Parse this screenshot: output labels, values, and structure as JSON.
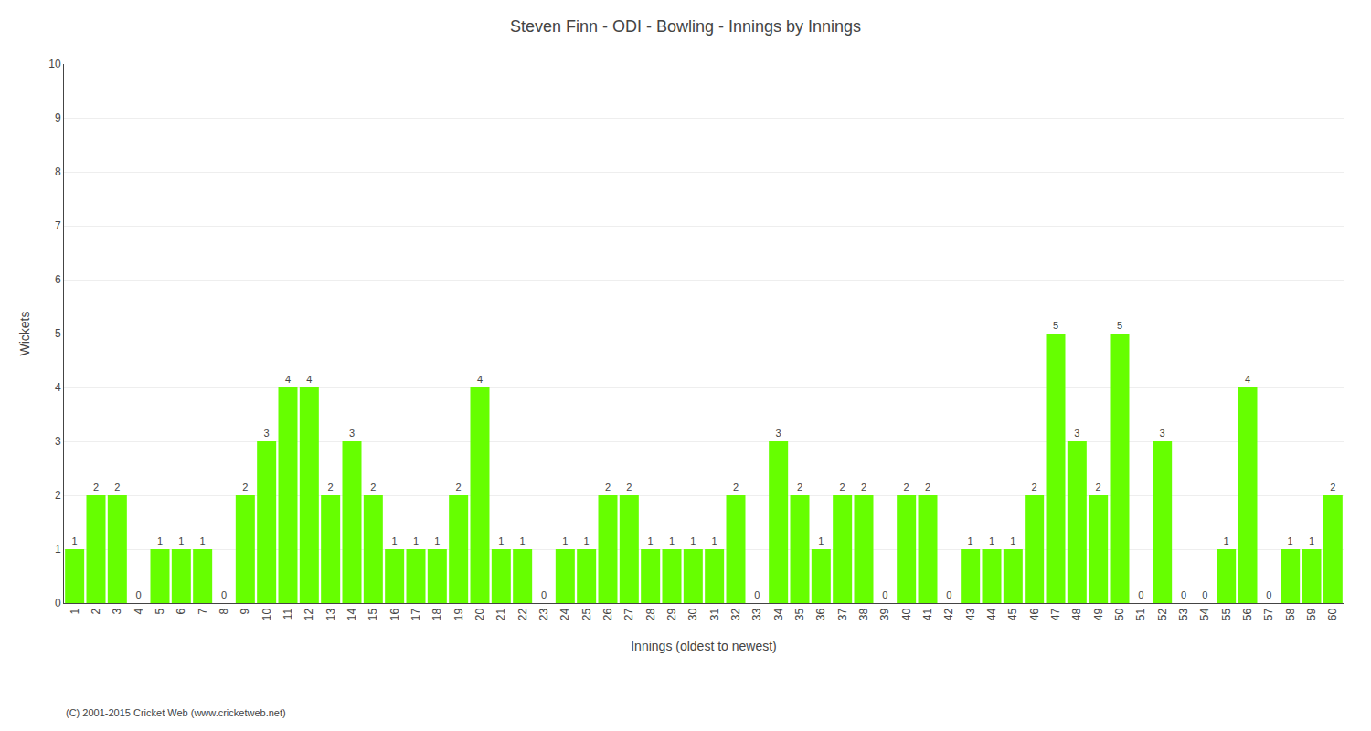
{
  "chart_data": {
    "type": "bar",
    "title": "Steven Finn - ODI - Bowling - Innings by Innings",
    "xlabel": "Innings (oldest to newest)",
    "ylabel": "Wickets",
    "categories": [
      "1",
      "2",
      "3",
      "4",
      "5",
      "6",
      "7",
      "8",
      "9",
      "10",
      "11",
      "12",
      "13",
      "14",
      "15",
      "16",
      "17",
      "18",
      "19",
      "20",
      "21",
      "22",
      "23",
      "24",
      "25",
      "26",
      "27",
      "28",
      "29",
      "30",
      "31",
      "32",
      "33",
      "34",
      "35",
      "36",
      "37",
      "38",
      "39",
      "40",
      "41",
      "42",
      "43",
      "44",
      "45",
      "46",
      "47",
      "48",
      "49",
      "50",
      "51",
      "52",
      "53",
      "54",
      "55",
      "56",
      "57",
      "58",
      "59",
      "60"
    ],
    "values": [
      1,
      2,
      2,
      0,
      1,
      1,
      1,
      0,
      2,
      3,
      4,
      4,
      2,
      3,
      2,
      1,
      1,
      1,
      2,
      4,
      1,
      1,
      0,
      1,
      1,
      2,
      2,
      1,
      1,
      1,
      1,
      2,
      0,
      3,
      2,
      1,
      2,
      2,
      0,
      2,
      2,
      0,
      1,
      1,
      1,
      2,
      5,
      3,
      2,
      5,
      0,
      3,
      0,
      0,
      1,
      4,
      0,
      1,
      1,
      2
    ],
    "color": "#66ff00",
    "ylim": [
      0,
      10
    ],
    "yticks": [
      0,
      1,
      2,
      3,
      4,
      5,
      6,
      7,
      8,
      9,
      10
    ],
    "grid": true,
    "data_labels": true,
    "footnote": "(C) 2001-2015 Cricket Web (www.cricketweb.net)"
  }
}
